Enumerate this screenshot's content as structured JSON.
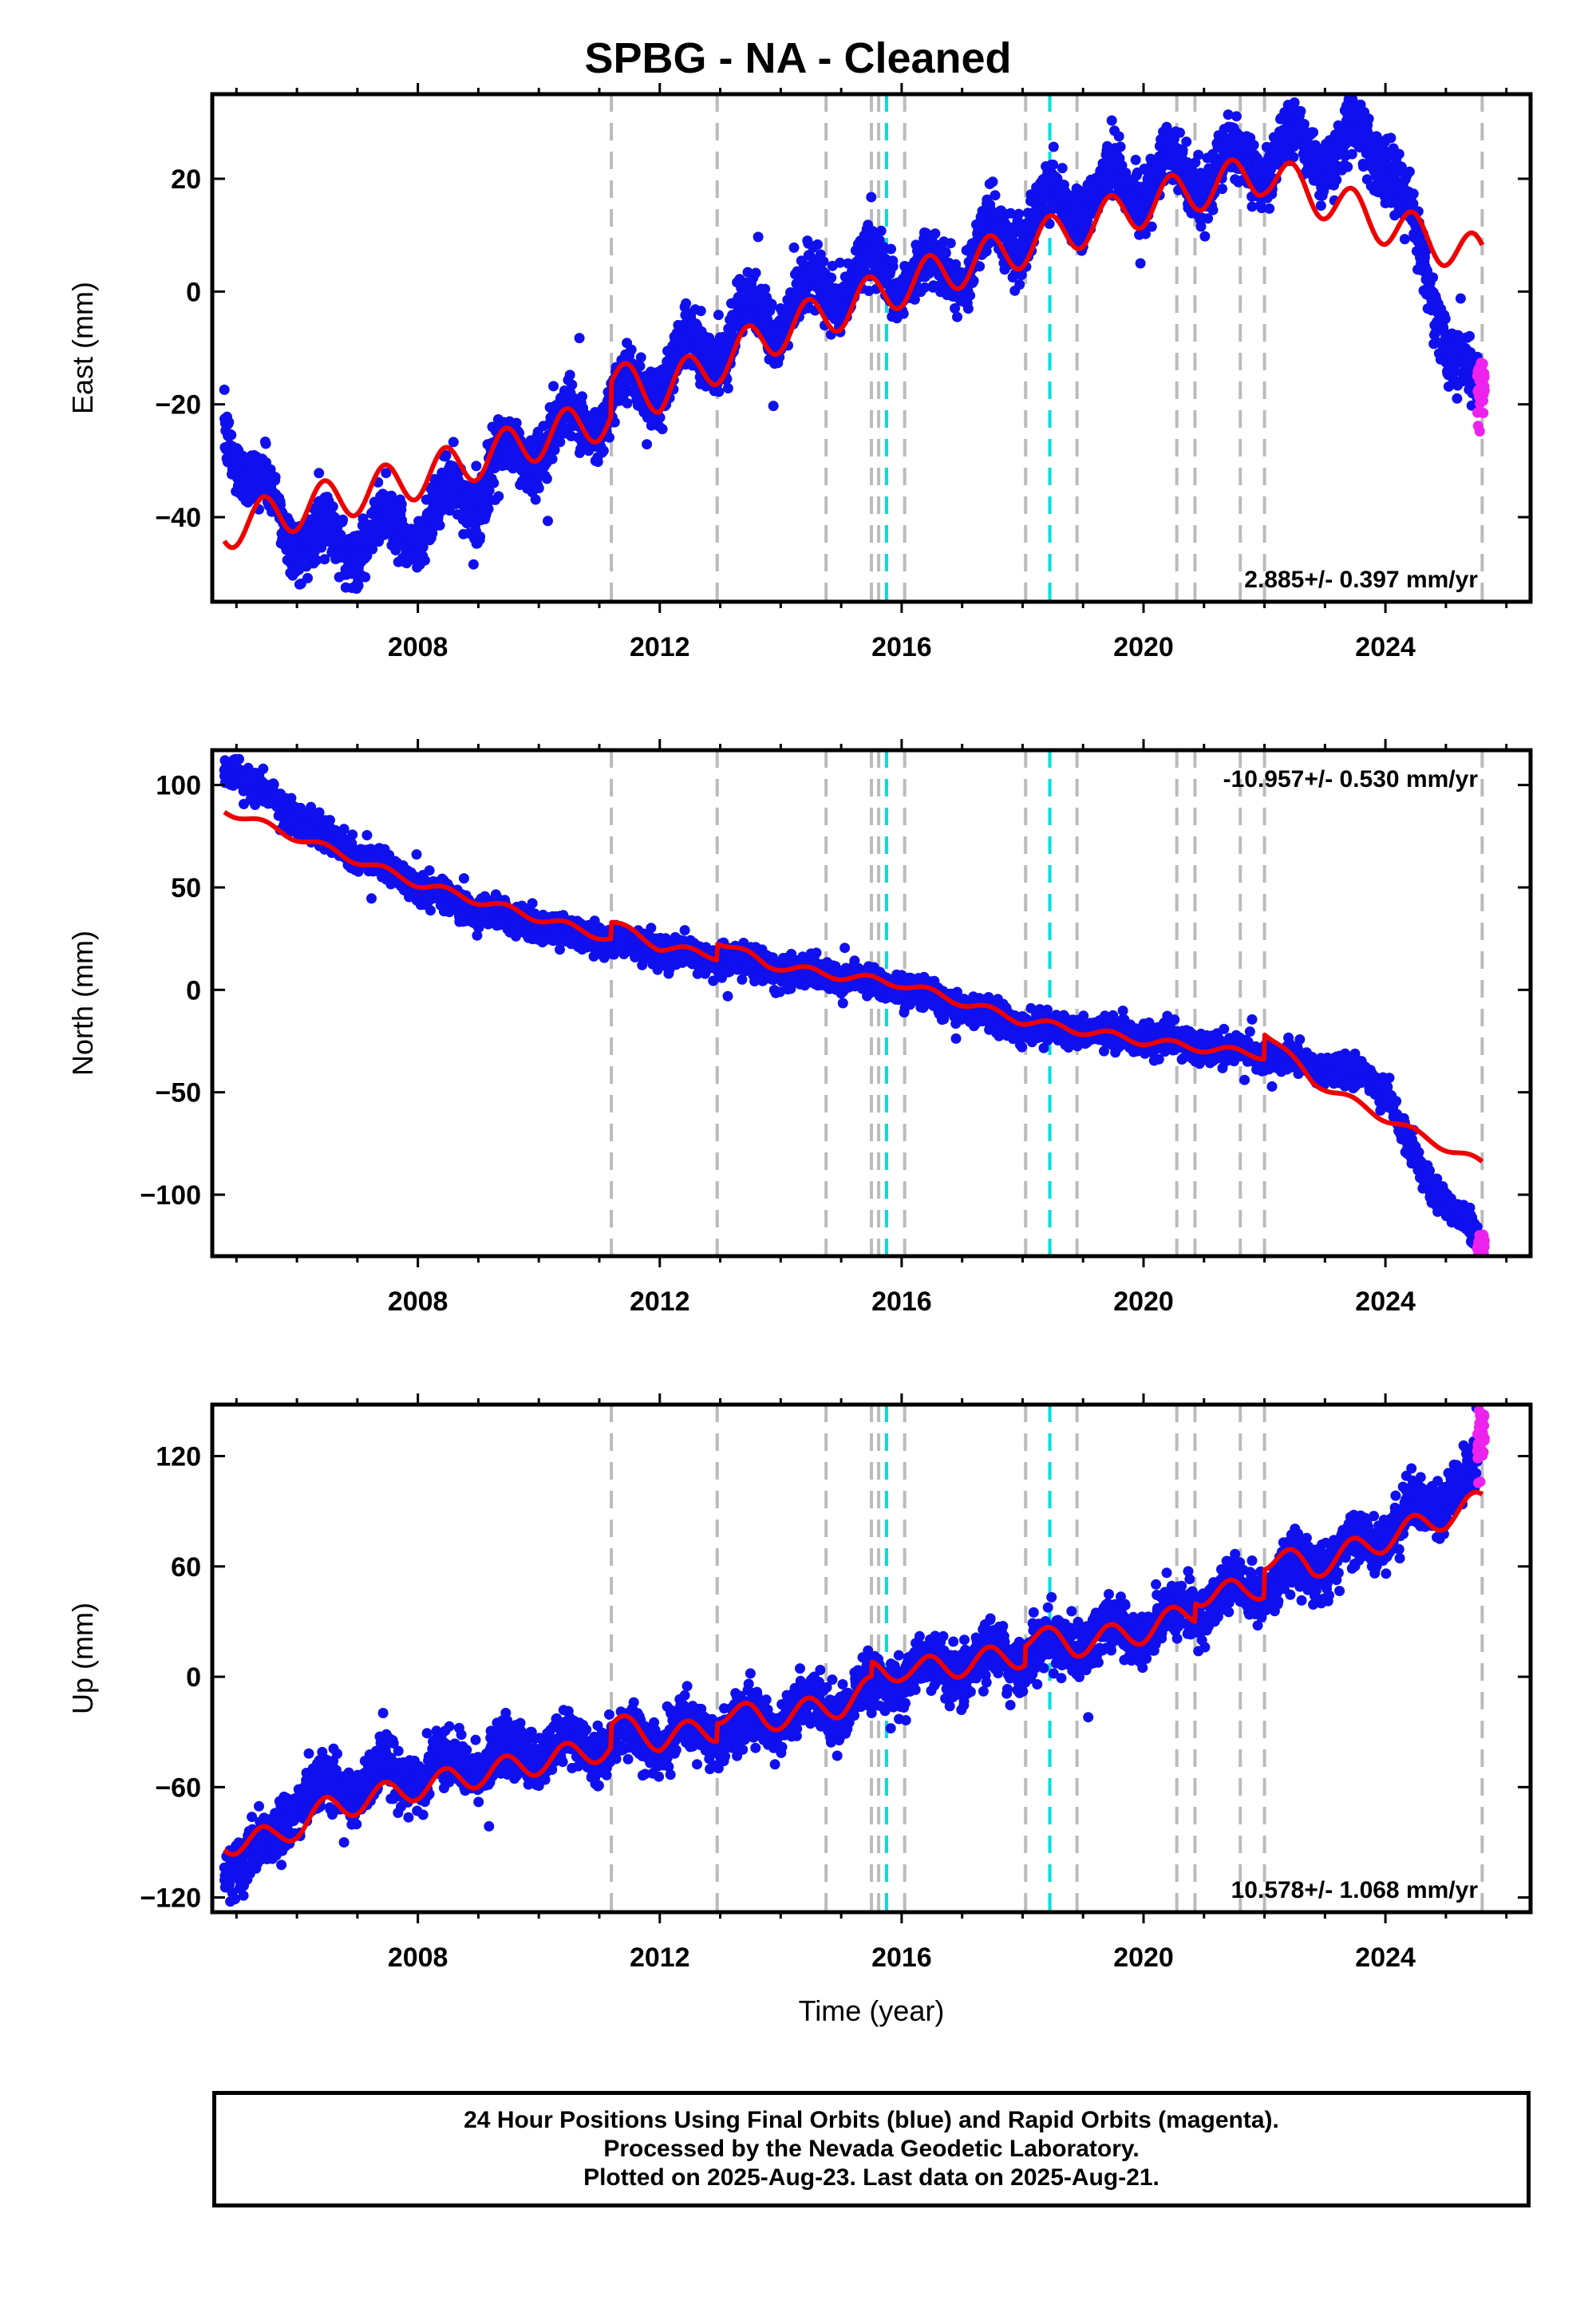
{
  "title": "SPBG  - NA - Cleaned",
  "colors": {
    "final_orbits": "#1010ee",
    "rapid_orbits": "#ee22ee",
    "model": "#ee0000",
    "offset_line_gray": "#bbbbbb",
    "offset_line_cyan": "#00dddd"
  },
  "chart_data": [
    {
      "type": "scatter",
      "ylabel": "East (mm)",
      "xlabel": "",
      "xlim": [
        2004.6,
        2026.4
      ],
      "ylim": [
        -55,
        35
      ],
      "yticks": [
        -40,
        -20,
        0,
        20
      ],
      "xticks": [
        2008,
        2012,
        2016,
        2020,
        2024
      ],
      "rate_text": "2.885+/- 0.397 mm/yr",
      "rate_position": "bottom-right",
      "model_trend": {
        "anchors_t": [
          2004.8,
          2008.0,
          2011.2,
          2014.0,
          2016.0,
          2018.0,
          2020.5,
          2022.0,
          2024.0,
          2025.6
        ],
        "anchors_v": [
          -42,
          -33,
          -22,
          -7,
          1,
          8,
          17,
          21,
          12,
          6
        ],
        "amplitude": 3.8
      },
      "model_offsets": [
        [
          2011.2,
          6.0
        ],
        [
          2025.6,
          -14.0
        ]
      ],
      "final_points": {
        "anchors_t": [
          2004.8,
          2005.3,
          2006.3,
          2007.5,
          2008.2,
          2010.0,
          2011.2,
          2013.0,
          2014.7,
          2015.6,
          2016.5,
          2018.5,
          2020.0,
          2021.0,
          2022.3,
          2023.3,
          2024.0,
          2024.5,
          2025.5
        ],
        "anchors_v": [
          -22,
          -35,
          -45,
          -43,
          -40,
          -27,
          -20,
          -8,
          0,
          4,
          2,
          15,
          20,
          21,
          25,
          25,
          27,
          8,
          -20
        ],
        "amplitude": 4.0,
        "noise": 2.5,
        "start": 2004.8,
        "end": 2025.52,
        "count": 4200
      },
      "rapid_points": {
        "start": 2025.52,
        "end": 2025.64,
        "center": -17,
        "noise": 3.0,
        "count": 40
      },
      "offset_lines_gray": [
        2011.2,
        2012.95,
        2014.75,
        2015.5,
        2015.62,
        2016.05,
        2018.05,
        2018.9,
        2020.55,
        2020.85,
        2021.6,
        2022.0,
        2025.6
      ],
      "offset_lines_cyan": [
        2015.75,
        2018.45
      ]
    },
    {
      "type": "scatter",
      "ylabel": "North (mm)",
      "xlabel": "",
      "xlim": [
        2004.6,
        2026.4
      ],
      "ylim": [
        -130,
        117
      ],
      "yticks": [
        -100,
        -50,
        0,
        50,
        100
      ],
      "xticks": [
        2008,
        2012,
        2016,
        2020,
        2024
      ],
      "rate_text": "-10.957+/- 0.530 mm/yr",
      "rate_position": "top-right",
      "model_trend": {
        "anchors_t": [
          2004.8,
          2008.0,
          2011.2,
          2014.7,
          2016.0,
          2018.0,
          2020.0,
          2022.0,
          2023.5,
          2024.5,
          2025.6
        ],
        "anchors_v": [
          88,
          52,
          25,
          8,
          3,
          -15,
          -25,
          -32,
          -55,
          -70,
          -85
        ],
        "amplitude": 2.0
      },
      "model_offsets": [
        [
          2011.2,
          8.0
        ],
        [
          2012.95,
          8.0
        ],
        [
          2022.0,
          12.0
        ]
      ],
      "final_points": {
        "anchors_t": [
          2004.8,
          2005.5,
          2006.5,
          2008.0,
          2009.0,
          2011.0,
          2013.0,
          2014.7,
          2016.0,
          2018.0,
          2020.0,
          2022.0,
          2023.5,
          2024.0,
          2024.6,
          2025.55
        ],
        "anchors_v": [
          110,
          95,
          75,
          50,
          38,
          25,
          15,
          7,
          2,
          -18,
          -23,
          -32,
          -40,
          -48,
          -90,
          -122
        ],
        "amplitude": 1.5,
        "noise": 3.5,
        "start": 2004.8,
        "end": 2025.52,
        "count": 4200
      },
      "rapid_points": {
        "start": 2025.52,
        "end": 2025.64,
        "center": -124,
        "noise": 2.0,
        "count": 40
      },
      "offset_lines_gray": [
        2011.2,
        2012.95,
        2014.75,
        2015.5,
        2015.62,
        2016.05,
        2018.05,
        2018.9,
        2020.55,
        2020.85,
        2021.6,
        2022.0,
        2025.6
      ],
      "offset_lines_cyan": [
        2015.75,
        2018.45
      ]
    },
    {
      "type": "scatter",
      "ylabel": "Up (mm)",
      "xlabel": "Time (year)",
      "xlim": [
        2004.6,
        2026.4
      ],
      "ylim": [
        -128,
        148
      ],
      "yticks": [
        -120,
        -60,
        0,
        60,
        120
      ],
      "xticks": [
        2008,
        2012,
        2016,
        2020,
        2024
      ],
      "rate_text": "10.578+/- 1.068 mm/yr",
      "rate_position": "bottom-right",
      "model_trend": {
        "anchors_t": [
          2004.8,
          2005.6,
          2006.5,
          2008.0,
          2011.2,
          2013.0,
          2015.0,
          2016.0,
          2018.0,
          2020.0,
          2022.0,
          2024.0,
          2025.6
        ],
        "anchors_v": [
          -90,
          -88,
          -72,
          -60,
          -38,
          -28,
          -15,
          2,
          12,
          25,
          50,
          75,
          95
        ],
        "amplitude": 7.0
      },
      "model_offsets": [
        [
          2011.2,
          12.0
        ],
        [
          2012.95,
          10.0
        ],
        [
          2015.5,
          8.0
        ],
        [
          2018.05,
          10.0
        ],
        [
          2020.85,
          10.0
        ],
        [
          2022.0,
          15.0
        ],
        [
          2025.6,
          25.0
        ]
      ],
      "final_points": {
        "anchors_t": [
          2004.8,
          2005.5,
          2006.0,
          2008.0,
          2011.2,
          2013.0,
          2015.0,
          2016.0,
          2018.0,
          2020.0,
          2022.0,
          2023.5,
          2024.0,
          2025.5
        ],
        "anchors_v": [
          -100,
          -95,
          -65,
          -52,
          -35,
          -28,
          -15,
          0,
          12,
          28,
          50,
          70,
          80,
          110
        ],
        "amplitude": 7.0,
        "noise": 7.0,
        "start": 2004.8,
        "end": 2025.52,
        "count": 4200
      },
      "rapid_points": {
        "start": 2025.52,
        "end": 2025.64,
        "center": 130,
        "noise": 8.0,
        "count": 40
      },
      "offset_lines_gray": [
        2011.2,
        2012.95,
        2014.75,
        2015.5,
        2015.62,
        2016.05,
        2018.05,
        2018.9,
        2020.55,
        2020.85,
        2021.6,
        2022.0,
        2025.6
      ],
      "offset_lines_cyan": [
        2015.75,
        2018.45
      ]
    }
  ],
  "footer": {
    "line1": "24 Hour Positions Using Final Orbits (blue) and Rapid Orbits (magenta).",
    "line2": "Processed by the Nevada Geodetic Laboratory.",
    "line3": "Plotted on 2025-Aug-23. Last data on 2025-Aug-21."
  }
}
